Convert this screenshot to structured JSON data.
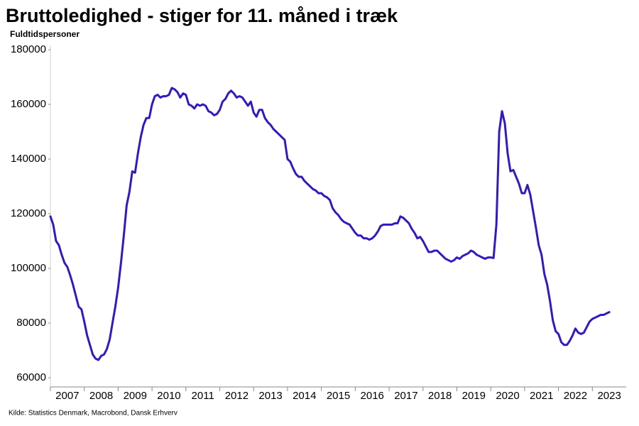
{
  "chart_data": {
    "type": "line",
    "title": "Bruttoledighed - stiger for 11. måned i træk",
    "subtitle": "Fuldtidspersoner",
    "source": "Kilde: Statistics Denmark, Macrobond, Dansk Erhverv",
    "color": "#3219c0",
    "xlim": [
      2007,
      2024
    ],
    "xticks": [
      {
        "value": 2007.5,
        "label": "2007"
      },
      {
        "value": 2008.5,
        "label": "2008"
      },
      {
        "value": 2009.5,
        "label": "2009"
      },
      {
        "value": 2010.5,
        "label": "2010"
      },
      {
        "value": 2011.5,
        "label": "2011"
      },
      {
        "value": 2012.5,
        "label": "2012"
      },
      {
        "value": 2013.5,
        "label": "2013"
      },
      {
        "value": 2014.5,
        "label": "2014"
      },
      {
        "value": 2015.5,
        "label": "2015"
      },
      {
        "value": 2016.5,
        "label": "2016"
      },
      {
        "value": 2017.5,
        "label": "2017"
      },
      {
        "value": 2018.5,
        "label": "2018"
      },
      {
        "value": 2019.5,
        "label": "2019"
      },
      {
        "value": 2020.5,
        "label": "2020"
      },
      {
        "value": 2021.5,
        "label": "2021"
      },
      {
        "value": 2022.5,
        "label": "2022"
      },
      {
        "value": 2023.5,
        "label": "2023"
      }
    ],
    "ylim": [
      60000,
      180000
    ],
    "yticks": [
      60000,
      80000,
      100000,
      120000,
      140000,
      160000,
      180000
    ],
    "x": [
      2007.0,
      2007.083,
      2007.167,
      2007.25,
      2007.333,
      2007.417,
      2007.5,
      2007.583,
      2007.667,
      2007.75,
      2007.833,
      2007.917,
      2008.0,
      2008.083,
      2008.167,
      2008.25,
      2008.333,
      2008.417,
      2008.5,
      2008.583,
      2008.667,
      2008.75,
      2008.833,
      2008.917,
      2009.0,
      2009.083,
      2009.167,
      2009.25,
      2009.333,
      2009.417,
      2009.5,
      2009.583,
      2009.667,
      2009.75,
      2009.833,
      2009.917,
      2010.0,
      2010.083,
      2010.167,
      2010.25,
      2010.333,
      2010.417,
      2010.5,
      2010.583,
      2010.667,
      2010.75,
      2010.833,
      2010.917,
      2011.0,
      2011.083,
      2011.167,
      2011.25,
      2011.333,
      2011.417,
      2011.5,
      2011.583,
      2011.667,
      2011.75,
      2011.833,
      2011.917,
      2012.0,
      2012.083,
      2012.167,
      2012.25,
      2012.333,
      2012.417,
      2012.5,
      2012.583,
      2012.667,
      2012.75,
      2012.833,
      2012.917,
      2013.0,
      2013.083,
      2013.167,
      2013.25,
      2013.333,
      2013.417,
      2013.5,
      2013.583,
      2013.667,
      2013.75,
      2013.833,
      2013.917,
      2014.0,
      2014.083,
      2014.167,
      2014.25,
      2014.333,
      2014.417,
      2014.5,
      2014.583,
      2014.667,
      2014.75,
      2014.833,
      2014.917,
      2015.0,
      2015.083,
      2015.167,
      2015.25,
      2015.333,
      2015.417,
      2015.5,
      2015.583,
      2015.667,
      2015.75,
      2015.833,
      2015.917,
      2016.0,
      2016.083,
      2016.167,
      2016.25,
      2016.333,
      2016.417,
      2016.5,
      2016.583,
      2016.667,
      2016.75,
      2016.833,
      2016.917,
      2017.0,
      2017.083,
      2017.167,
      2017.25,
      2017.333,
      2017.417,
      2017.5,
      2017.583,
      2017.667,
      2017.75,
      2017.833,
      2017.917,
      2018.0,
      2018.083,
      2018.167,
      2018.25,
      2018.333,
      2018.417,
      2018.5,
      2018.583,
      2018.667,
      2018.75,
      2018.833,
      2018.917,
      2019.0,
      2019.083,
      2019.167,
      2019.25,
      2019.333,
      2019.417,
      2019.5,
      2019.583,
      2019.667,
      2019.75,
      2019.833,
      2019.917,
      2020.0,
      2020.083,
      2020.167,
      2020.25,
      2020.333,
      2020.417,
      2020.5,
      2020.583,
      2020.667,
      2020.75,
      2020.833,
      2020.917,
      2021.0,
      2021.083,
      2021.167,
      2021.25,
      2021.333,
      2021.417,
      2021.5,
      2021.583,
      2021.667,
      2021.75,
      2021.833,
      2021.917,
      2022.0,
      2022.083,
      2022.167,
      2022.25,
      2022.333,
      2022.417,
      2022.5,
      2022.583,
      2022.667,
      2022.75,
      2022.833,
      2022.917,
      2023.0,
      2023.083,
      2023.167,
      2023.25,
      2023.333,
      2023.417,
      2023.5
    ],
    "values": [
      119000,
      116000,
      110000,
      108500,
      105000,
      102000,
      100500,
      97500,
      94000,
      90000,
      86000,
      85000,
      80500,
      75500,
      72000,
      68500,
      67000,
      66500,
      68000,
      68500,
      70500,
      74000,
      80000,
      86000,
      93000,
      102000,
      112000,
      123000,
      128000,
      135500,
      135000,
      142000,
      148000,
      152500,
      155000,
      155000,
      160000,
      163000,
      163500,
      162500,
      163000,
      163000,
      163500,
      166000,
      165500,
      164500,
      162500,
      164000,
      163500,
      160000,
      159500,
      158500,
      160000,
      159500,
      160000,
      159500,
      157500,
      157000,
      156000,
      156500,
      158000,
      161000,
      162000,
      164000,
      165000,
      164000,
      162500,
      163000,
      162500,
      161000,
      159500,
      161000,
      157000,
      155500,
      158000,
      158000,
      155000,
      153500,
      152500,
      151000,
      150000,
      149000,
      148000,
      147000,
      140000,
      139000,
      136500,
      134500,
      133500,
      133500,
      132000,
      131000,
      130000,
      129000,
      128500,
      127500,
      127500,
      126500,
      126000,
      125000,
      122000,
      120500,
      119500,
      118000,
      117000,
      116500,
      116000,
      114500,
      113000,
      112000,
      112000,
      111000,
      111000,
      110500,
      111000,
      112000,
      113500,
      115500,
      116000,
      116000,
      116000,
      116000,
      116500,
      116500,
      119000,
      118500,
      117500,
      116500,
      114500,
      113000,
      111000,
      111500,
      110000,
      108000,
      106000,
      106000,
      106500,
      106500,
      105500,
      104500,
      103500,
      103000,
      102500,
      103000,
      104000,
      103500,
      104500,
      105000,
      105500,
      106500,
      106000,
      105000,
      104500,
      104000,
      103500,
      104000,
      104000,
      103800,
      116000,
      150000,
      157500,
      153000,
      142000,
      135500,
      136000,
      133500,
      131000,
      127500,
      127500,
      130500,
      127000,
      121000,
      115000,
      108500,
      105000,
      98000,
      94000,
      88000,
      81000,
      77000,
      76000,
      73000,
      72000,
      72000,
      73500,
      75500,
      78000,
      76500,
      76000,
      76500,
      78500,
      80500,
      81500,
      82000,
      82500,
      83000,
      83000,
      83500,
      84000
    ]
  }
}
